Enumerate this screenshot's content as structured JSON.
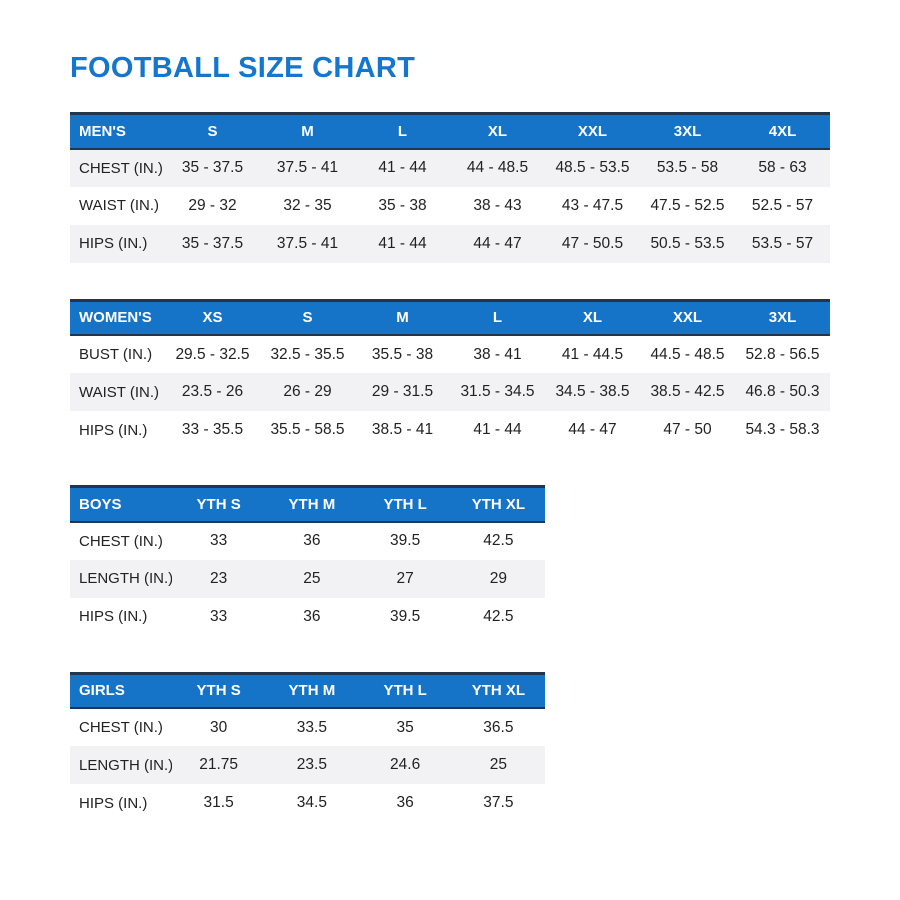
{
  "page": {
    "title": "FOOTBALL SIZE CHART"
  },
  "colors": {
    "title_blue": "#1476cd",
    "header_blue": "#1573c8",
    "dark_border": "#20354f",
    "stripe_gray": "#f2f2f4",
    "text_dark": "#222222"
  },
  "tables": [
    {
      "id": "mens",
      "section_label": "MEN'S",
      "wide": true,
      "columns": [
        "S",
        "M",
        "L",
        "XL",
        "XXL",
        "3XL",
        "4XL"
      ],
      "rows": [
        {
          "label": "CHEST (IN.)",
          "shaded": true,
          "values": [
            "35 - 37.5",
            "37.5 - 41",
            "41 - 44",
            "44 - 48.5",
            "48.5 - 53.5",
            "53.5 - 58",
            "58 - 63"
          ]
        },
        {
          "label": "WAIST (IN.)",
          "shaded": false,
          "values": [
            "29 - 32",
            "32 - 35",
            "35 - 38",
            "38 - 43",
            "43 - 47.5",
            "47.5 - 52.5",
            "52.5 - 57"
          ]
        },
        {
          "label": "HIPS (IN.)",
          "shaded": true,
          "values": [
            "35 - 37.5",
            "37.5 - 41",
            "41 - 44",
            "44 - 47",
            "47 - 50.5",
            "50.5 - 53.5",
            "53.5 - 57"
          ]
        }
      ]
    },
    {
      "id": "womens",
      "section_label": "WOMEN'S",
      "wide": true,
      "columns": [
        "XS",
        "S",
        "M",
        "L",
        "XL",
        "XXL",
        "3XL"
      ],
      "rows": [
        {
          "label": "BUST (IN.)",
          "shaded": false,
          "values": [
            "29.5 - 32.5",
            "32.5 - 35.5",
            "35.5 - 38",
            "38 - 41",
            "41 - 44.5",
            "44.5 - 48.5",
            "52.8 - 56.5"
          ]
        },
        {
          "label": "WAIST (IN.)",
          "shaded": true,
          "values": [
            "23.5 - 26",
            "26 - 29",
            "29 - 31.5",
            "31.5 - 34.5",
            "34.5 - 38.5",
            "38.5 - 42.5",
            "46.8 - 50.3"
          ]
        },
        {
          "label": "HIPS (IN.)",
          "shaded": false,
          "values": [
            "33 - 35.5",
            "35.5 - 58.5",
            "38.5 - 41",
            "41 - 44",
            "44 - 47",
            "47 - 50",
            "54.3 - 58.3"
          ]
        }
      ]
    },
    {
      "id": "boys",
      "section_label": "BOYS",
      "wide": false,
      "columns": [
        "YTH S",
        "YTH M",
        "YTH L",
        "YTH XL"
      ],
      "rows": [
        {
          "label": "CHEST (IN.)",
          "shaded": false,
          "values": [
            "33",
            "36",
            "39.5",
            "42.5"
          ]
        },
        {
          "label": "LENGTH (IN.)",
          "shaded": true,
          "values": [
            "23",
            "25",
            "27",
            "29"
          ]
        },
        {
          "label": "HIPS (IN.)",
          "shaded": false,
          "values": [
            "33",
            "36",
            "39.5",
            "42.5"
          ]
        }
      ]
    },
    {
      "id": "girls",
      "section_label": "GIRLS",
      "wide": false,
      "columns": [
        "YTH S",
        "YTH M",
        "YTH L",
        "YTH XL"
      ],
      "rows": [
        {
          "label": "CHEST (IN.)",
          "shaded": false,
          "values": [
            "30",
            "33.5",
            "35",
            "36.5"
          ]
        },
        {
          "label": "LENGTH (IN.)",
          "shaded": true,
          "values": [
            "21.75",
            "23.5",
            "24.6",
            "25"
          ]
        },
        {
          "label": "HIPS (IN.)",
          "shaded": false,
          "values": [
            "31.5",
            "34.5",
            "36",
            "37.5"
          ]
        }
      ]
    }
  ]
}
